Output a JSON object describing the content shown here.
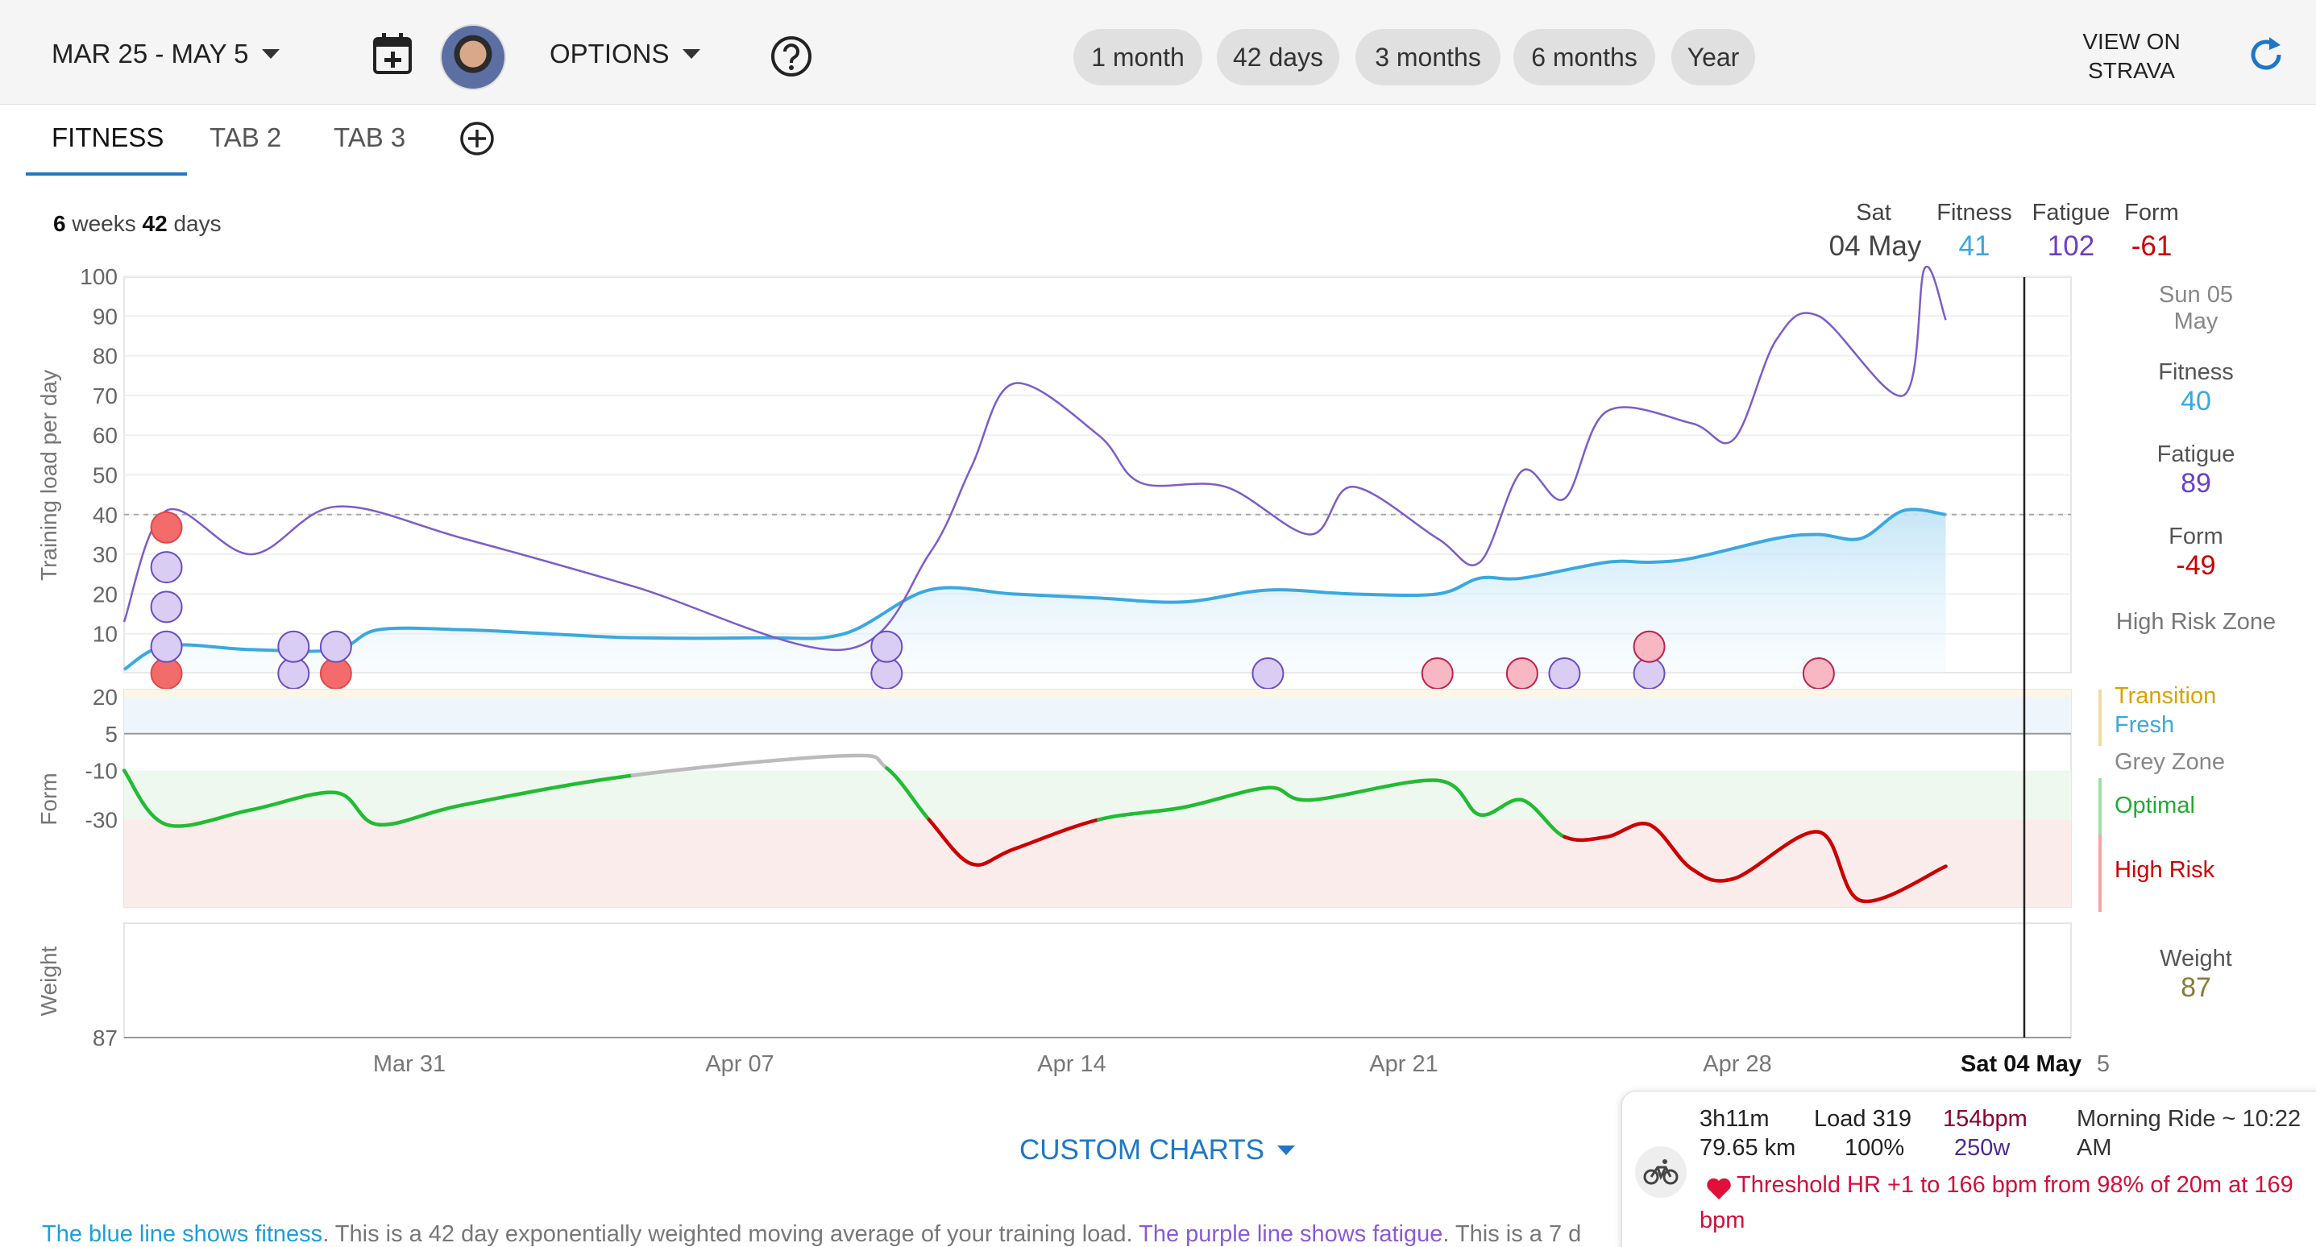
{
  "toolbar": {
    "date_range": "MAR 25 - MAY 5",
    "options_label": "OPTIONS",
    "periods": [
      "1 month",
      "42 days",
      "3 months",
      "6 months",
      "Year"
    ],
    "view_on_line1": "VIEW ON",
    "view_on_line2": "STRAVA"
  },
  "tabs": [
    "FITNESS",
    "TAB 2",
    "TAB 3"
  ],
  "period_summary": {
    "weeks": "6",
    "weeks_label": "weeks",
    "days": "42",
    "days_label": "days"
  },
  "header_readout": {
    "day": "Sat",
    "date": "04 May",
    "fitness_label": "Fitness",
    "fitness_value": "41",
    "fatigue_label": "Fatigue",
    "fatigue_value": "102",
    "form_label": "Form",
    "form_value": "-61"
  },
  "right_panel": {
    "date_line1": "Sun 05",
    "date_line2": "May",
    "fitness_label": "Fitness",
    "fitness_value": "40",
    "fatigue_label": "Fatigue",
    "fatigue_value": "89",
    "form_label": "Form",
    "form_value": "-49",
    "risk_label": "High Risk Zone",
    "weight_label": "Weight",
    "weight_value": "87"
  },
  "zones": {
    "transition": "Transition",
    "fresh": "Fresh",
    "grey": "Grey Zone",
    "optimal": "Optimal",
    "high_risk": "High Risk"
  },
  "colors": {
    "fitness": "#3aa8e0",
    "fatigue": "#7c5cc9",
    "form_high": "#cc0000",
    "form_optimal": "#22bb33",
    "form_grey": "#bbbbbb",
    "weight": "#8a7a3a",
    "accent": "#1e77c6"
  },
  "chart_data": {
    "type": "line",
    "training_chart": {
      "ylabel": "Training load per day",
      "yticks": [
        10,
        20,
        30,
        40,
        50,
        60,
        70,
        80,
        90,
        100
      ],
      "ylim": [
        0,
        102
      ],
      "reference_line": 40,
      "x_days": 42,
      "series": [
        {
          "name": "Fitness",
          "values": [
            [
              0,
              1
            ],
            [
              1,
              7
            ],
            [
              3,
              6
            ],
            [
              5,
              6
            ],
            [
              6,
              11
            ],
            [
              8,
              11
            ],
            [
              10,
              10
            ],
            [
              12,
              9
            ],
            [
              15,
              9
            ],
            [
              17,
              10
            ],
            [
              19,
              21
            ],
            [
              21,
              20
            ],
            [
              23,
              19
            ],
            [
              25,
              18
            ],
            [
              27,
              21
            ],
            [
              29,
              20
            ],
            [
              31,
              20
            ],
            [
              32,
              24
            ],
            [
              33,
              24
            ],
            [
              35,
              28
            ],
            [
              36,
              28
            ],
            [
              37,
              29
            ],
            [
              39,
              34
            ],
            [
              40,
              35
            ],
            [
              41,
              34
            ],
            [
              42,
              41
            ],
            [
              43,
              40
            ]
          ]
        },
        {
          "name": "Fatigue",
          "values": [
            [
              0,
              13
            ],
            [
              1,
              41
            ],
            [
              3,
              30
            ],
            [
              5,
              42
            ],
            [
              8,
              34
            ],
            [
              12,
              22
            ],
            [
              17,
              6
            ],
            [
              19,
              30
            ],
            [
              20,
              52
            ],
            [
              21,
              73
            ],
            [
              23,
              60
            ],
            [
              24,
              48
            ],
            [
              26,
              47
            ],
            [
              28,
              35
            ],
            [
              29,
              47
            ],
            [
              31,
              34
            ],
            [
              32,
              28
            ],
            [
              33,
              51
            ],
            [
              34,
              44
            ],
            [
              35,
              66
            ],
            [
              37,
              63
            ],
            [
              38,
              59
            ],
            [
              39,
              84
            ],
            [
              40,
              90
            ],
            [
              42,
              70
            ],
            [
              42.5,
              102
            ],
            [
              43,
              89
            ]
          ]
        }
      ],
      "activity_dots": [
        {
          "day": 1,
          "load_levels": [
            40,
            30,
            20,
            10
          ],
          "colors": [
            "red",
            "purple",
            "purple",
            "purple"
          ],
          "base": "red"
        },
        {
          "day": 4,
          "load_levels": [
            10
          ],
          "colors": [
            "purple"
          ],
          "base": "purple"
        },
        {
          "day": 5,
          "load_levels": [
            10
          ],
          "colors": [
            "purple"
          ],
          "base": "red"
        },
        {
          "day": 18,
          "load_levels": [
            10
          ],
          "colors": [
            "purple"
          ],
          "base": "purple"
        },
        {
          "day": 27,
          "load_levels": [],
          "colors": [],
          "base": "purple"
        },
        {
          "day": 31,
          "load_levels": [],
          "colors": [],
          "base": "pink"
        },
        {
          "day": 33,
          "load_levels": [],
          "colors": [],
          "base": "pink"
        },
        {
          "day": 34,
          "load_levels": [],
          "colors": [],
          "base": "purple"
        },
        {
          "day": 36,
          "load_levels": [
            10
          ],
          "colors": [
            "pink"
          ],
          "base": "purple"
        },
        {
          "day": 40,
          "load_levels": [],
          "colors": [],
          "base": "pink"
        }
      ]
    },
    "form_chart": {
      "ylabel": "Form",
      "yticks": [
        20,
        5,
        -10,
        -30
      ],
      "values": [
        [
          0,
          -10
        ],
        [
          1,
          -32
        ],
        [
          3,
          -26
        ],
        [
          5,
          -19
        ],
        [
          6,
          -32
        ],
        [
          8,
          -24
        ],
        [
          12,
          -12
        ],
        [
          17,
          -4
        ],
        [
          18,
          -9
        ],
        [
          19,
          -30
        ],
        [
          20,
          -48
        ],
        [
          21,
          -42
        ],
        [
          23,
          -30
        ],
        [
          25,
          -25
        ],
        [
          27,
          -17
        ],
        [
          28,
          -22
        ],
        [
          31,
          -14
        ],
        [
          32,
          -28
        ],
        [
          33,
          -22
        ],
        [
          34,
          -37
        ],
        [
          35,
          -37
        ],
        [
          36,
          -32
        ],
        [
          37,
          -50
        ],
        [
          38,
          -54
        ],
        [
          40,
          -35
        ],
        [
          41,
          -63
        ],
        [
          43,
          -49
        ]
      ]
    },
    "weight_chart": {
      "ylabel": "Weight",
      "yticks": [
        87
      ]
    },
    "x_tick_labels": [
      "Mar 31",
      "Apr 07",
      "Apr 14",
      "Apr 21",
      "Apr 28",
      "Sat 04 May",
      "5"
    ]
  },
  "custom_charts_label": "CUSTOM CHARTS",
  "footer": {
    "blue_text": "The blue line shows fitness",
    "mid_text": ". This is a 42 day exponentially weighted moving average of your training load. ",
    "purple_text": "The purple line shows fatigue",
    "end_text": ". This is a 7 d"
  },
  "activity_popup": {
    "duration": "3h11m",
    "distance": "79.65 km",
    "load_label": "Load",
    "load_value": "319",
    "load_pct": "100%",
    "hr": "154bpm",
    "power": "250w",
    "title": "Morning Ride ~ 10:22",
    "title_cont": "AM",
    "threshold_note": "Threshold HR +1 to 166 bpm from 98% of 20m at 169",
    "threshold_note_cont": "bpm"
  }
}
